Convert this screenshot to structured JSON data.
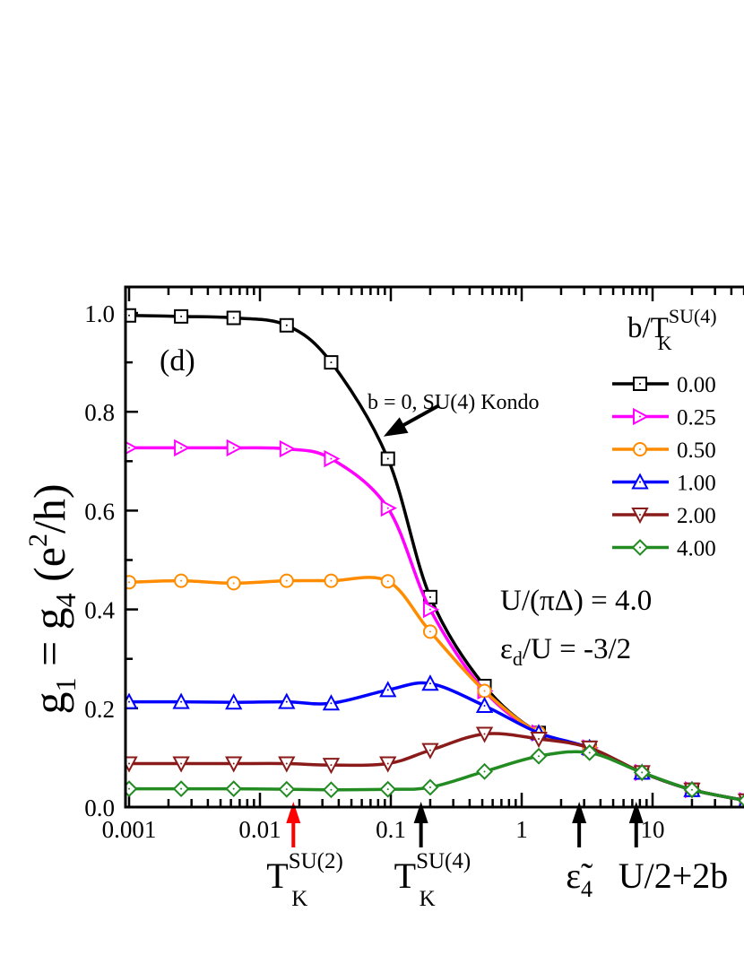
{
  "chart_data": {
    "type": "line",
    "panel_label": "(d)",
    "xscale": "log",
    "xlim": [
      0.001,
      60
    ],
    "ylim": [
      0.0,
      1.05
    ],
    "x_ticks": [
      {
        "value": 0.001,
        "label": "0.001"
      },
      {
        "value": 0.01,
        "label": "0.01"
      },
      {
        "value": 0.1,
        "label": "0.1"
      },
      {
        "value": 1,
        "label": "1"
      },
      {
        "value": 10,
        "label": "10"
      }
    ],
    "y_ticks": [
      {
        "value": 0.0,
        "label": "0.0"
      },
      {
        "value": 0.2,
        "label": "0.2"
      },
      {
        "value": 0.4,
        "label": "0.4"
      },
      {
        "value": 0.6,
        "label": "0.6"
      },
      {
        "value": 0.8,
        "label": "0.8"
      },
      {
        "value": 1.0,
        "label": "1.0"
      }
    ],
    "ylabel": {
      "g1": "g",
      "sub1": "1",
      "eq": " = g",
      "sub4": "4",
      "open": " (e",
      "sup": "2",
      "close": "/h)"
    },
    "legend": {
      "title_main": "b/T",
      "title_sup": "SU(4)",
      "title_sub": "K",
      "placement": "top-right"
    },
    "series": [
      {
        "name": "0.00",
        "color": "#000000",
        "marker": "square",
        "x": [
          0.001,
          0.0025,
          0.0063,
          0.016,
          0.035,
          0.095,
          0.2,
          0.52,
          1.35,
          3.3,
          8.3,
          20,
          52
        ],
        "y": [
          0.995,
          0.993,
          0.99,
          0.975,
          0.9,
          0.705,
          0.425,
          0.245,
          0.15,
          0.12,
          0.07,
          0.035,
          0.013
        ]
      },
      {
        "name": "0.25",
        "color": "#ff00ff",
        "marker": "triangle-right",
        "x": [
          0.001,
          0.0025,
          0.0063,
          0.016,
          0.035,
          0.095,
          0.2,
          0.52,
          1.35,
          3.3,
          8.3,
          20,
          52
        ],
        "y": [
          0.727,
          0.727,
          0.727,
          0.725,
          0.705,
          0.605,
          0.4,
          0.235,
          0.15,
          0.12,
          0.07,
          0.035,
          0.013
        ]
      },
      {
        "name": "0.50",
        "color": "#ff8c00",
        "marker": "circle",
        "x": [
          0.001,
          0.0025,
          0.0063,
          0.016,
          0.035,
          0.095,
          0.2,
          0.52,
          1.35,
          3.3,
          8.3,
          20,
          52
        ],
        "y": [
          0.455,
          0.458,
          0.453,
          0.458,
          0.458,
          0.457,
          0.355,
          0.235,
          0.15,
          0.12,
          0.07,
          0.035,
          0.013
        ]
      },
      {
        "name": "1.00",
        "color": "#0000ff",
        "marker": "triangle-up",
        "x": [
          0.001,
          0.0025,
          0.0063,
          0.016,
          0.035,
          0.095,
          0.2,
          0.52,
          1.35,
          3.3,
          8.3,
          20,
          52
        ],
        "y": [
          0.213,
          0.213,
          0.212,
          0.213,
          0.21,
          0.237,
          0.25,
          0.205,
          0.15,
          0.12,
          0.07,
          0.035,
          0.013
        ]
      },
      {
        "name": "2.00",
        "color": "#8b1a1a",
        "marker": "triangle-down",
        "x": [
          0.001,
          0.0025,
          0.0063,
          0.016,
          0.035,
          0.095,
          0.2,
          0.52,
          1.35,
          3.3,
          8.3,
          20,
          52
        ],
        "y": [
          0.088,
          0.088,
          0.088,
          0.088,
          0.085,
          0.088,
          0.115,
          0.148,
          0.138,
          0.12,
          0.07,
          0.035,
          0.013
        ]
      },
      {
        "name": "4.00",
        "color": "#228b22",
        "marker": "diamond",
        "x": [
          0.001,
          0.0025,
          0.0063,
          0.016,
          0.035,
          0.095,
          0.2,
          0.52,
          1.35,
          3.3,
          8.3,
          20,
          52
        ],
        "y": [
          0.037,
          0.037,
          0.037,
          0.036,
          0.035,
          0.036,
          0.04,
          0.072,
          0.103,
          0.11,
          0.07,
          0.035,
          0.013
        ]
      }
    ],
    "annotations": {
      "kondo_text": "b = 0, SU(4) Kondo",
      "u_text": "U/(πΔ) = 4.0",
      "eps_main": "ε",
      "eps_sub": "d",
      "eps_rest": "/U = -3/2",
      "arrow_target": {
        "x": 0.088,
        "y": 0.75
      }
    },
    "markers_below_axis": [
      {
        "x": 0.018,
        "color": "#ff0000",
        "main": "T",
        "sup": "SU(2)",
        "sub": "K"
      },
      {
        "x": 0.17,
        "color": "#000000",
        "main": "T",
        "sup": "SU(4)",
        "sub": "K"
      },
      {
        "x": 2.75,
        "color": "#000000",
        "main": "ε̃",
        "sub": "4"
      },
      {
        "x": 7.5,
        "color": "#000000",
        "main": "U/2+2b"
      }
    ]
  }
}
